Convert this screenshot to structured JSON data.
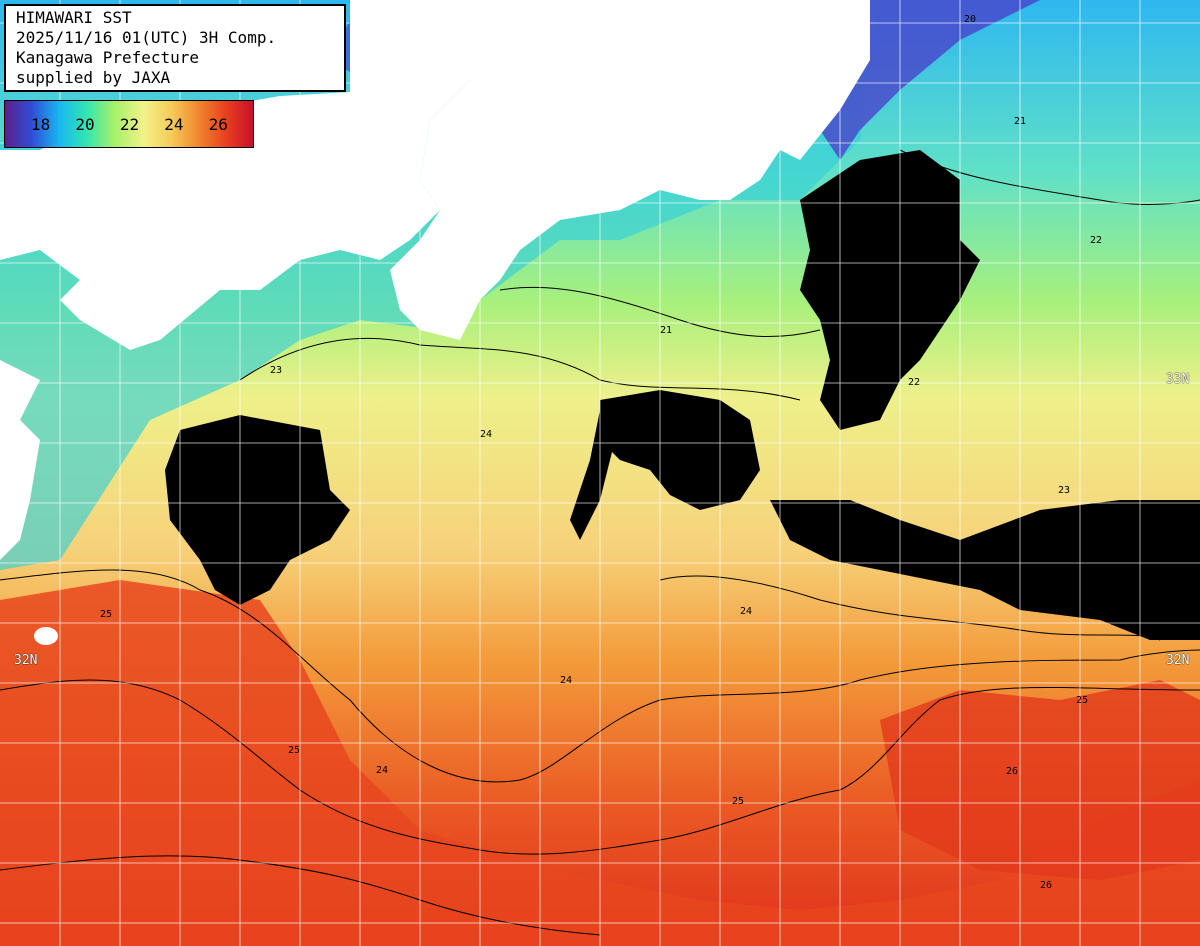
{
  "info": {
    "lines": [
      "HIMAWARI SST",
      "2025/11/16 01(UTC) 3H Comp.",
      "Kanagawa Prefecture",
      "supplied by JAXA"
    ]
  },
  "scale": {
    "labels": [
      "18",
      "20",
      "22",
      "24",
      "26"
    ],
    "colors": [
      "#5a1f8a",
      "#2f4fd6",
      "#19b8f0",
      "#33e6b0",
      "#a6f06a",
      "#f2f28a",
      "#f6cc5a",
      "#f0862e",
      "#e8401e",
      "#c8102a"
    ]
  },
  "lat_labels": {
    "north": "33N",
    "south": "32N"
  },
  "contour_labels": [
    "20",
    "21",
    "22",
    "23",
    "24",
    "25",
    "26"
  ],
  "colors": {
    "land": "#ffffff",
    "cloud": "#000000",
    "sst_cold": "#2c3fd0",
    "sst_cool": "#23c1ee",
    "sst_mid": "#9ff07a",
    "sst_warm": "#f4e07a",
    "sst_hot": "#f27a2c",
    "sst_very_hot": "#e2341c",
    "contour": "#000000",
    "grid": "#ffffff"
  }
}
